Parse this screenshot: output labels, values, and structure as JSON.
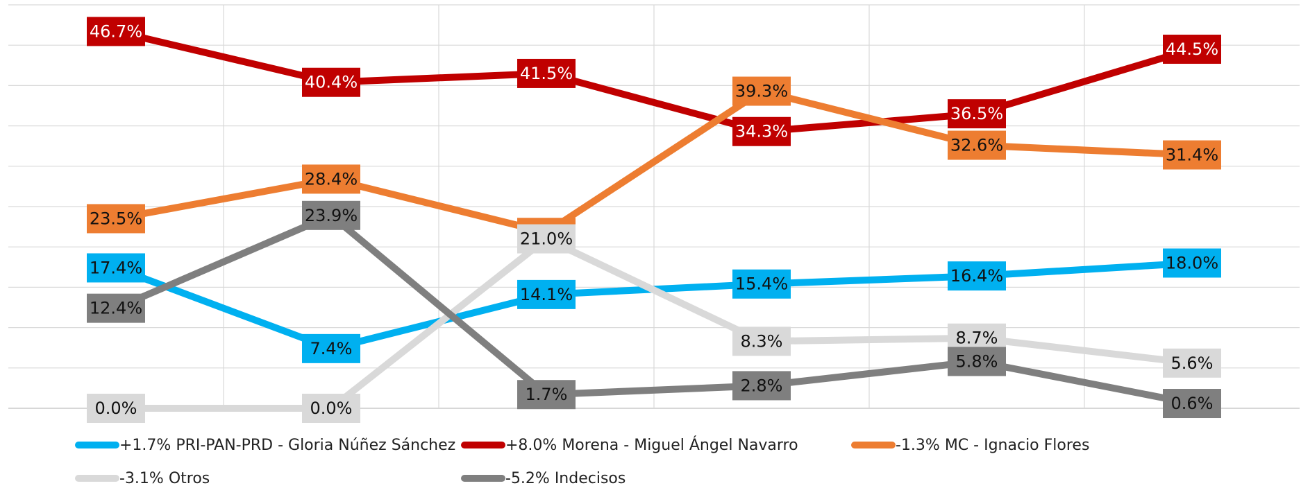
{
  "chart_data": {
    "type": "line",
    "categories": [
      null,
      null,
      null,
      null,
      null,
      null
    ],
    "ylim": [
      0,
      50
    ],
    "yticks": [
      0,
      5,
      10,
      15,
      20,
      25,
      30,
      35,
      40,
      45,
      50
    ],
    "grid": true,
    "legend": "bottom",
    "series": [
      {
        "name": "+1.7% PRI-PAN-PRD - Gloria Núñez Sánchez",
        "color": "#00b0f0",
        "values": [
          17.4,
          7.4,
          14.1,
          15.4,
          16.4,
          18.0
        ],
        "value_labels": [
          "17.4%",
          "7.4%",
          "14.1%",
          "15.4%",
          "16.4%",
          "18.0%"
        ]
      },
      {
        "name": "+8.0% Morena - Miguel Ángel Navarro",
        "color": "#c00000",
        "values": [
          46.7,
          40.4,
          41.5,
          34.3,
          36.5,
          44.5
        ],
        "value_labels": [
          "46.7%",
          "40.4%",
          "41.5%",
          "34.3%",
          "36.5%",
          "44.5%"
        ]
      },
      {
        "name": "-1.3% MC - Ignacio Flores",
        "color": "#ed7d31",
        "values": [
          23.5,
          28.4,
          21.8,
          39.3,
          32.6,
          31.4
        ],
        "value_labels": [
          "23.5%",
          "28.4%",
          "21.8%",
          "39.3%",
          "32.6%",
          "31.4%"
        ]
      },
      {
        "name": "-3.1% Otros",
        "color": "#d9d9d9",
        "values": [
          0.0,
          0.0,
          21.0,
          8.3,
          8.7,
          5.6
        ],
        "value_labels": [
          "0.0%",
          "0.0%",
          "21.0%",
          "8.3%",
          "8.7%",
          "5.6%"
        ]
      },
      {
        "name": "-5.2% Indecisos",
        "color": "#7f7f7f",
        "values": [
          12.4,
          23.9,
          1.7,
          2.8,
          5.8,
          0.6
        ],
        "value_labels": [
          "12.4%",
          "23.9%",
          "1.7%",
          "2.8%",
          "5.8%",
          "0.6%"
        ]
      }
    ]
  }
}
